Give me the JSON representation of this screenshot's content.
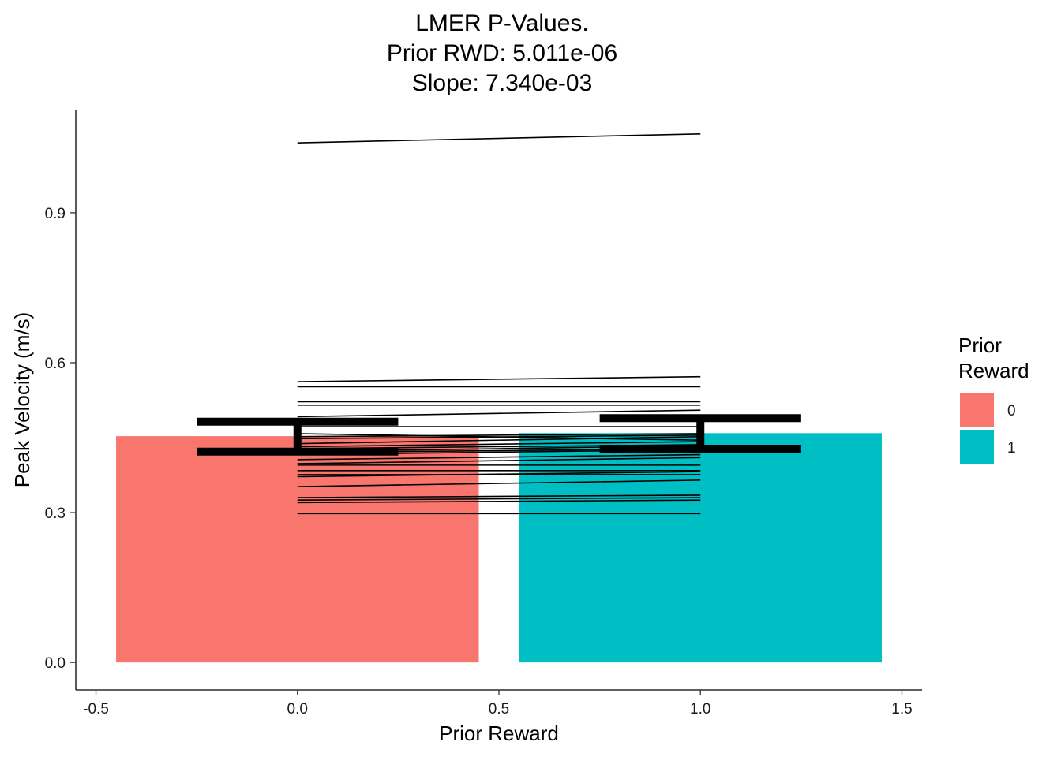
{
  "chart_data": {
    "type": "bar",
    "title_lines": [
      "LMER P-Values.",
      "Prior RWD:  5.011e-06",
      "Slope:  7.340e-03"
    ],
    "xlabel": "Prior Reward",
    "ylabel": "Peak Velocity (m/s)",
    "xlim": [
      -0.55,
      1.55
    ],
    "ylim": [
      -0.055,
      1.105
    ],
    "x_ticks": [
      -0.5,
      0.0,
      0.5,
      1.0,
      1.5
    ],
    "x_tick_labels": [
      "-0.5",
      "0.0",
      "0.5",
      "1.0",
      "1.5"
    ],
    "y_ticks": [
      0.0,
      0.3,
      0.6,
      0.9
    ],
    "y_tick_labels": [
      "0.0",
      "0.3",
      "0.6",
      "0.9"
    ],
    "grid": false,
    "legend_position": "right",
    "bars": [
      {
        "category": "0",
        "x": 0,
        "value": 0.453,
        "color": "#F8766D"
      },
      {
        "category": "1",
        "x": 1,
        "value": 0.459,
        "color": "#00BFC4"
      }
    ],
    "error_bars": [
      {
        "x": 0,
        "low": 0.422,
        "high": 0.482
      },
      {
        "x": 1,
        "low": 0.428,
        "high": 0.489
      }
    ],
    "subject_lines": [
      [
        1.04,
        1.058
      ],
      [
        0.562,
        0.572
      ],
      [
        0.552,
        0.552
      ],
      [
        0.522,
        0.522
      ],
      [
        0.515,
        0.515
      ],
      [
        0.492,
        0.505
      ],
      [
        0.472,
        0.472
      ],
      [
        0.458,
        0.445
      ],
      [
        0.452,
        0.458
      ],
      [
        0.448,
        0.455
      ],
      [
        0.438,
        0.452
      ],
      [
        0.432,
        0.442
      ],
      [
        0.428,
        0.436
      ],
      [
        0.422,
        0.434
      ],
      [
        0.42,
        0.428
      ],
      [
        0.416,
        0.426
      ],
      [
        0.406,
        0.416
      ],
      [
        0.398,
        0.41
      ],
      [
        0.395,
        0.395
      ],
      [
        0.384,
        0.384
      ],
      [
        0.376,
        0.376
      ],
      [
        0.372,
        0.382
      ],
      [
        0.352,
        0.365
      ],
      [
        0.33,
        0.335
      ],
      [
        0.325,
        0.33
      ],
      [
        0.32,
        0.325
      ],
      [
        0.298,
        0.298
      ]
    ],
    "legend": {
      "title_lines": [
        "Prior",
        "Reward"
      ],
      "items": [
        {
          "label": "0",
          "color": "#F8766D"
        },
        {
          "label": "1",
          "color": "#00BFC4"
        }
      ]
    }
  }
}
